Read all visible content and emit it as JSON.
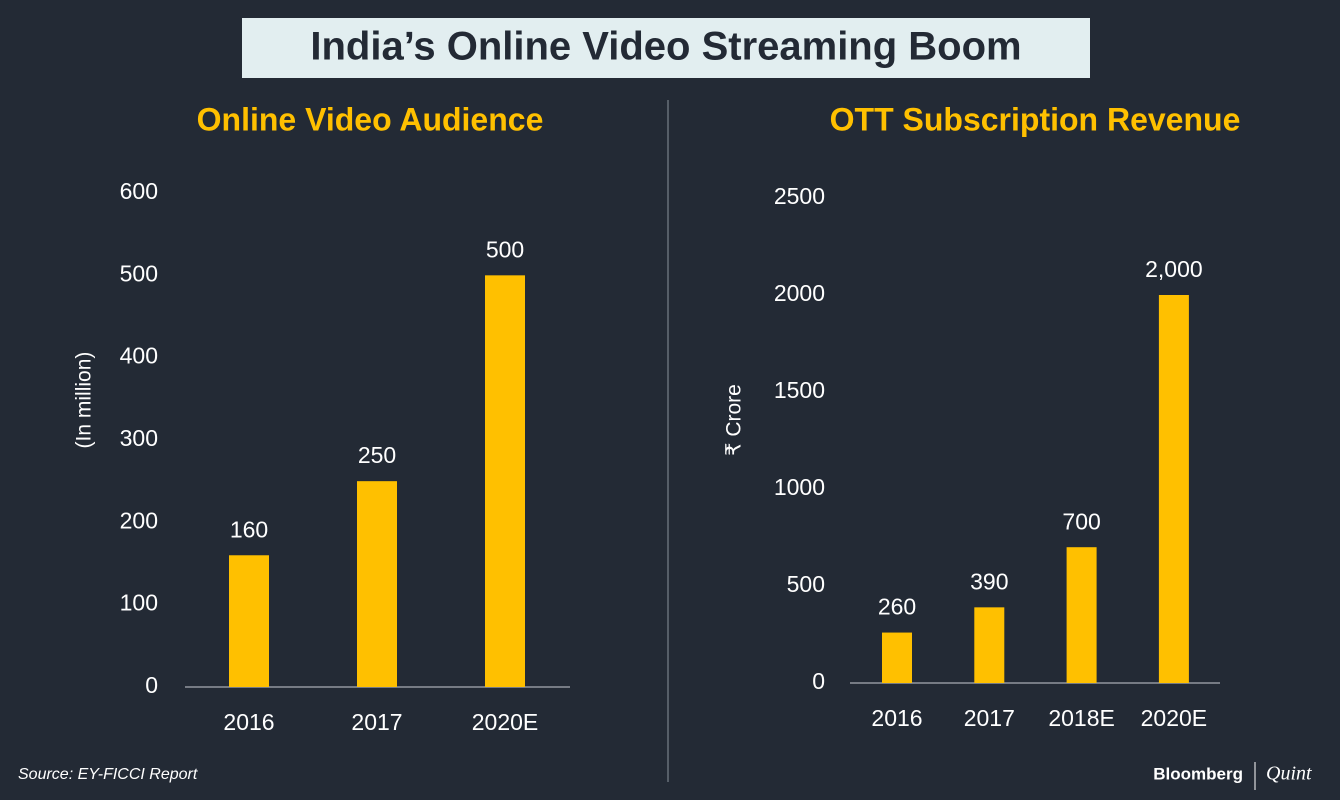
{
  "title": "India’s Online Video Streaming Boom",
  "chart_data": [
    {
      "type": "bar",
      "title": "Online Video Audience",
      "y_label": "(In million)",
      "categories": [
        "2016",
        "2017",
        "2020E"
      ],
      "values": [
        160,
        250,
        500
      ],
      "color": "#ffc000",
      "ylim": [
        0,
        600
      ],
      "yticks": [
        0,
        100,
        200,
        300,
        400,
        500,
        600
      ]
    },
    {
      "type": "bar",
      "title": "OTT Subscription Revenue",
      "y_label": "₹ Crore",
      "categories": [
        "2016",
        "2017",
        "2018E",
        "2020E"
      ],
      "values": [
        260,
        390,
        700,
        2000
      ],
      "value_labels": [
        "260",
        "390",
        "700",
        "2,000"
      ],
      "color": "#ffc000",
      "ylim": [
        0,
        2500
      ],
      "yticks": [
        0,
        500,
        1000,
        1500,
        2000,
        2500
      ]
    }
  ],
  "source": "Source: EY-FICCI Report",
  "brand": {
    "left": "Bloomberg",
    "right": "Quint"
  }
}
